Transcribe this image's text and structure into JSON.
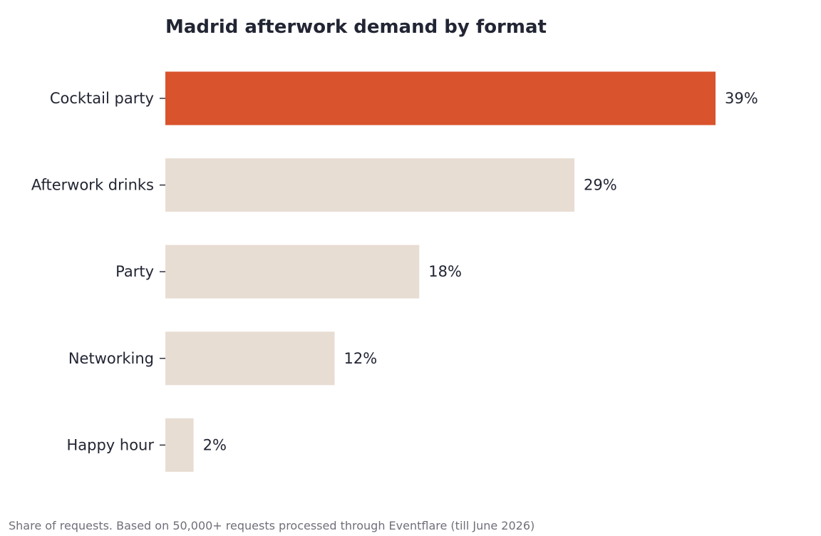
{
  "chart_data": {
    "type": "bar",
    "orientation": "horizontal",
    "title": "Madrid afterwork demand by format",
    "categories": [
      "Cocktail party",
      "Afterwork drinks",
      "Party",
      "Networking",
      "Happy hour"
    ],
    "values": [
      39,
      29,
      18,
      12,
      2
    ],
    "value_labels": [
      "39%",
      "29%",
      "18%",
      "12%",
      "2%"
    ],
    "unit": "%",
    "xlim": [
      0,
      39
    ],
    "highlight_index": 0,
    "grid": false,
    "legend": "none",
    "colors": {
      "highlight": "#D9532C",
      "default": "#E8DDD3",
      "text": "#222533",
      "footnote": "#6F7079"
    },
    "footnote": "Share of requests. Based on 50,000+ requests processed through Eventflare (till June 2026)"
  }
}
